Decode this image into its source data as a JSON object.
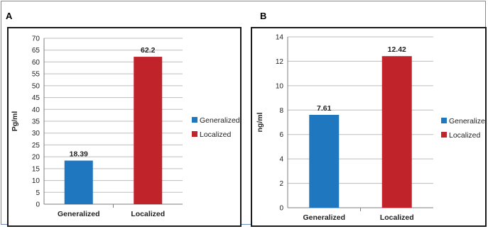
{
  "panels": [
    {
      "letter": "A",
      "chart_data": {
        "type": "bar",
        "categories": [
          "Generalized",
          "Localized"
        ],
        "values": [
          18.39,
          62.2
        ],
        "value_labels": [
          "18.39",
          "62.2"
        ],
        "colors": [
          "#1f77c0",
          "#c0232a"
        ],
        "ylabel": "Pg/ml",
        "ylim": [
          0,
          70
        ],
        "yticks": [
          0,
          5,
          10,
          15,
          20,
          25,
          30,
          35,
          40,
          45,
          50,
          55,
          60,
          65,
          70
        ],
        "grid": true,
        "legend": [
          "Generalized",
          "Localized"
        ],
        "legend_position": "right"
      }
    },
    {
      "letter": "B",
      "chart_data": {
        "type": "bar",
        "categories": [
          "Generalized",
          "Localized"
        ],
        "values": [
          7.61,
          12.42
        ],
        "value_labels": [
          "7.61",
          "12.42"
        ],
        "colors": [
          "#1f77c0",
          "#c0232a"
        ],
        "ylabel": "ng/ml",
        "ylim": [
          0,
          14
        ],
        "yticks": [
          0,
          2,
          4,
          6,
          8,
          10,
          12,
          14
        ],
        "grid": true,
        "legend": [
          "Generalized",
          "Localized"
        ],
        "legend_position": "right"
      }
    }
  ]
}
